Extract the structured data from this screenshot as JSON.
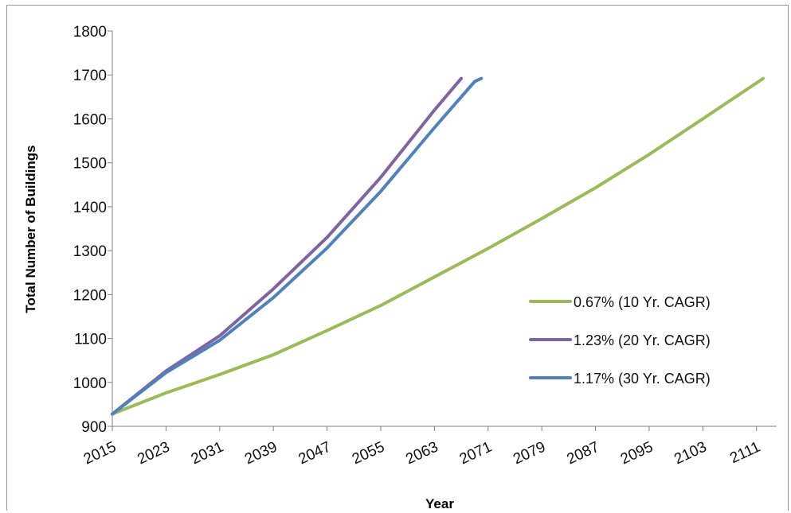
{
  "chart_data": {
    "type": "line",
    "xlabel": "Year",
    "ylabel": "Total Number of Buildings",
    "xlim": [
      2015,
      2114
    ],
    "ylim": [
      900,
      1800
    ],
    "x_ticks": [
      2015,
      2023,
      2031,
      2039,
      2047,
      2055,
      2063,
      2071,
      2079,
      2087,
      2095,
      2103,
      2111
    ],
    "y_ticks": [
      900,
      1000,
      1100,
      1200,
      1300,
      1400,
      1500,
      1600,
      1700,
      1800
    ],
    "grid": false,
    "legend_position": "right",
    "series": [
      {
        "name": "0.67% (10 Yr. CAGR)",
        "color": "#9bbb59",
        "points": [
          [
            2015,
            928
          ],
          [
            2023,
            976
          ],
          [
            2031,
            1018
          ],
          [
            2039,
            1063
          ],
          [
            2047,
            1118
          ],
          [
            2055,
            1175
          ],
          [
            2063,
            1240
          ],
          [
            2071,
            1305
          ],
          [
            2079,
            1373
          ],
          [
            2087,
            1443
          ],
          [
            2095,
            1519
          ],
          [
            2103,
            1600
          ],
          [
            2112,
            1692
          ]
        ]
      },
      {
        "name": "1.23% (20 Yr. CAGR)",
        "color": "#8064a2",
        "points": [
          [
            2015,
            928
          ],
          [
            2023,
            1026
          ],
          [
            2031,
            1106
          ],
          [
            2039,
            1213
          ],
          [
            2047,
            1330
          ],
          [
            2055,
            1467
          ],
          [
            2063,
            1620
          ],
          [
            2067,
            1692
          ]
        ]
      },
      {
        "name": "1.17% (30 Yr. CAGR)",
        "color": "#4f81bd",
        "points": [
          [
            2015,
            928
          ],
          [
            2023,
            1022
          ],
          [
            2031,
            1096
          ],
          [
            2039,
            1193
          ],
          [
            2047,
            1306
          ],
          [
            2055,
            1435
          ],
          [
            2063,
            1580
          ],
          [
            2069,
            1685
          ],
          [
            2070,
            1692
          ]
        ]
      }
    ]
  }
}
